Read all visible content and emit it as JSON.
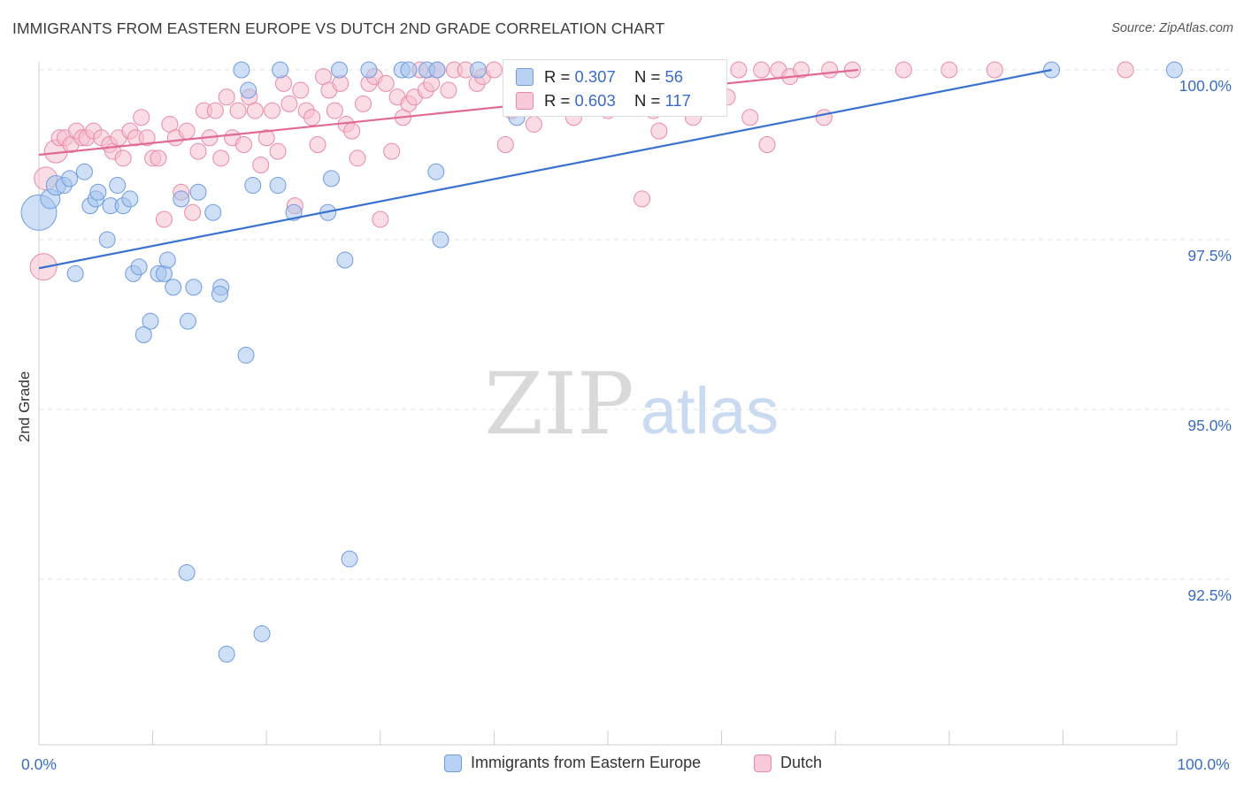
{
  "title": "IMMIGRANTS FROM EASTERN EUROPE VS DUTCH 2ND GRADE CORRELATION CHART",
  "source": "Source: ZipAtlas.com",
  "watermark": {
    "zip": "ZIP",
    "atlas": "atlas"
  },
  "legend": {
    "rows": [
      {
        "r_label": "R = ",
        "r_value": "0.307",
        "n_label": "N = ",
        "n_value": "56"
      },
      {
        "r_label": "R = ",
        "r_value": "0.603",
        "n_label": "N = ",
        "n_value": "117"
      }
    ]
  },
  "colors": {
    "blue_fill": "#a8c4ec",
    "blue_stroke": "#6f9be0",
    "blue_line": "#3a72d0",
    "pink_fill": "#f6bfd0",
    "pink_stroke": "#e88aa8",
    "pink_line": "#e06a93",
    "grid": "#e3e3e3",
    "tick_label": "#3a6cc6"
  },
  "chart_data": {
    "type": "scatter",
    "title": "IMMIGRANTS FROM EASTERN EUROPE VS DUTCH 2ND GRADE CORRELATION CHART",
    "xlabel": "",
    "ylabel": "2nd Grade",
    "xlim": [
      0,
      100
    ],
    "ylim": [
      90.0,
      100.4
    ],
    "x_tick_labels": [
      "0.0%",
      "100.0%"
    ],
    "y_ticks": [
      {
        "value": 100.0,
        "label": "100.0%"
      },
      {
        "value": 97.5,
        "label": "97.5%"
      },
      {
        "value": 95.0,
        "label": "95.0%"
      },
      {
        "value": 92.5,
        "label": "92.5%"
      }
    ],
    "grid": true,
    "legend_position": "bottom",
    "series": [
      {
        "name": "Immigrants from Eastern Europe",
        "color": "#a8c4ec",
        "trend": {
          "x": [
            0,
            89
          ],
          "y": [
            97.08,
            100.0
          ]
        },
        "points": [
          [
            0.0,
            97.9,
            20
          ],
          [
            1.0,
            98.1,
            11
          ],
          [
            1.5,
            98.3,
            11
          ],
          [
            2.2,
            98.3,
            9
          ],
          [
            2.7,
            98.4,
            9
          ],
          [
            4.0,
            98.5,
            9
          ],
          [
            4.5,
            98.0,
            9
          ],
          [
            5.0,
            98.1,
            9
          ],
          [
            5.2,
            98.2,
            9
          ],
          [
            6.3,
            98.0,
            9
          ],
          [
            6.9,
            98.3,
            9
          ],
          [
            7.4,
            98.0,
            9
          ],
          [
            8.0,
            98.1,
            9
          ],
          [
            3.2,
            97.0,
            9
          ],
          [
            6.0,
            97.5,
            9
          ],
          [
            8.3,
            97.0,
            9
          ],
          [
            8.8,
            97.1,
            9
          ],
          [
            10.5,
            97.0,
            9
          ],
          [
            11.0,
            97.0,
            9
          ],
          [
            11.3,
            97.2,
            9
          ],
          [
            11.8,
            96.8,
            9
          ],
          [
            13.6,
            96.8,
            9
          ],
          [
            16.0,
            96.8,
            9
          ],
          [
            15.9,
            96.7,
            9
          ],
          [
            9.8,
            96.3,
            9
          ],
          [
            13.1,
            96.3,
            9
          ],
          [
            9.2,
            96.1,
            9
          ],
          [
            18.2,
            95.8,
            9
          ],
          [
            14.0,
            98.2,
            9
          ],
          [
            12.5,
            98.1,
            9
          ],
          [
            15.3,
            97.9,
            9
          ],
          [
            18.8,
            98.3,
            9
          ],
          [
            21.0,
            98.3,
            9
          ],
          [
            22.4,
            97.9,
            9
          ],
          [
            25.4,
            97.9,
            9
          ],
          [
            25.7,
            98.4,
            9
          ],
          [
            26.9,
            97.2,
            9
          ],
          [
            35.3,
            97.5,
            9
          ],
          [
            34.9,
            98.5,
            9
          ],
          [
            18.4,
            99.7,
            9
          ],
          [
            17.8,
            100.0,
            9
          ],
          [
            21.2,
            100.0,
            9
          ],
          [
            26.4,
            100.0,
            9
          ],
          [
            29.0,
            100.0,
            9
          ],
          [
            31.9,
            100.0,
            9
          ],
          [
            32.5,
            100.0,
            9
          ],
          [
            34.1,
            100.0,
            9
          ],
          [
            35.0,
            100.0,
            9
          ],
          [
            38.6,
            100.0,
            9
          ],
          [
            42.0,
            99.3,
            9
          ],
          [
            89.0,
            100.0,
            9
          ],
          [
            99.8,
            100.0,
            9
          ],
          [
            13.0,
            92.6,
            9
          ],
          [
            27.3,
            92.8,
            9
          ],
          [
            19.6,
            91.7,
            9
          ],
          [
            16.5,
            91.4,
            9
          ]
        ]
      },
      {
        "name": "Dutch",
        "color": "#f6bfd0",
        "trend": {
          "x": [
            0,
            72
          ],
          "y": [
            98.75,
            100.0
          ]
        },
        "points": [
          [
            0.4,
            97.1,
            15
          ],
          [
            0.6,
            98.4,
            13
          ],
          [
            1.5,
            98.8,
            13
          ],
          [
            1.8,
            99.0,
            9
          ],
          [
            2.3,
            99.0,
            9
          ],
          [
            2.8,
            98.9,
            9
          ],
          [
            3.3,
            99.1,
            9
          ],
          [
            3.8,
            99.0,
            9
          ],
          [
            4.2,
            99.0,
            9
          ],
          [
            4.8,
            99.1,
            9
          ],
          [
            5.5,
            99.0,
            9
          ],
          [
            6.2,
            98.9,
            9
          ],
          [
            6.5,
            98.8,
            9
          ],
          [
            7.0,
            99.0,
            9
          ],
          [
            7.4,
            98.7,
            9
          ],
          [
            8.0,
            99.1,
            9
          ],
          [
            8.5,
            99.0,
            9
          ],
          [
            9.0,
            99.3,
            9
          ],
          [
            9.5,
            99.0,
            9
          ],
          [
            10.0,
            98.7,
            9
          ],
          [
            10.5,
            98.7,
            9
          ],
          [
            11.0,
            97.8,
            9
          ],
          [
            11.5,
            99.2,
            9
          ],
          [
            12.0,
            99.0,
            9
          ],
          [
            12.5,
            98.2,
            9
          ],
          [
            13.0,
            99.1,
            9
          ],
          [
            13.5,
            97.9,
            9
          ],
          [
            14.0,
            98.8,
            9
          ],
          [
            14.5,
            99.4,
            9
          ],
          [
            15.0,
            99.0,
            9
          ],
          [
            15.5,
            99.4,
            9
          ],
          [
            16.0,
            98.7,
            9
          ],
          [
            16.5,
            99.6,
            9
          ],
          [
            17.0,
            99.0,
            9
          ],
          [
            17.5,
            99.4,
            9
          ],
          [
            18.0,
            98.9,
            9
          ],
          [
            18.5,
            99.6,
            9
          ],
          [
            19.0,
            99.4,
            9
          ],
          [
            19.5,
            98.6,
            9
          ],
          [
            20.0,
            99.0,
            9
          ],
          [
            20.5,
            99.4,
            9
          ],
          [
            21.0,
            98.8,
            9
          ],
          [
            21.5,
            99.8,
            9
          ],
          [
            22.0,
            99.5,
            9
          ],
          [
            22.5,
            98.0,
            9
          ],
          [
            23.0,
            99.7,
            9
          ],
          [
            23.5,
            99.4,
            9
          ],
          [
            24.0,
            99.3,
            9
          ],
          [
            24.5,
            98.9,
            9
          ],
          [
            25.0,
            99.9,
            9
          ],
          [
            25.5,
            99.7,
            9
          ],
          [
            26.0,
            99.4,
            9
          ],
          [
            26.5,
            99.8,
            9
          ],
          [
            27.0,
            99.2,
            9
          ],
          [
            27.5,
            99.1,
            9
          ],
          [
            28.0,
            98.7,
            9
          ],
          [
            28.5,
            99.5,
            9
          ],
          [
            29.0,
            99.8,
            9
          ],
          [
            29.5,
            99.9,
            9
          ],
          [
            30.0,
            97.8,
            9
          ],
          [
            30.5,
            99.8,
            9
          ],
          [
            31.0,
            98.8,
            9
          ],
          [
            31.5,
            99.6,
            9
          ],
          [
            32.0,
            99.3,
            9
          ],
          [
            32.5,
            99.5,
            9
          ],
          [
            33.0,
            99.6,
            9
          ],
          [
            33.5,
            100.0,
            9
          ],
          [
            34.0,
            99.7,
            9
          ],
          [
            34.5,
            99.8,
            9
          ],
          [
            35.0,
            100.0,
            9
          ],
          [
            36.0,
            99.7,
            9
          ],
          [
            36.5,
            100.0,
            9
          ],
          [
            37.5,
            100.0,
            9
          ],
          [
            38.5,
            99.8,
            9
          ],
          [
            39.0,
            99.9,
            9
          ],
          [
            40.0,
            100.0,
            9
          ],
          [
            41.0,
            98.9,
            9
          ],
          [
            41.5,
            99.4,
            9
          ],
          [
            42.5,
            100.0,
            9
          ],
          [
            43.5,
            99.2,
            9
          ],
          [
            44.0,
            99.9,
            9
          ],
          [
            45.0,
            99.6,
            9
          ],
          [
            45.5,
            99.6,
            9
          ],
          [
            46.0,
            100.0,
            9
          ],
          [
            47.0,
            99.3,
            9
          ],
          [
            48.0,
            100.0,
            9
          ],
          [
            48.5,
            99.5,
            9
          ],
          [
            49.5,
            99.7,
            9
          ],
          [
            50.0,
            99.4,
            9
          ],
          [
            50.5,
            99.9,
            9
          ],
          [
            51.0,
            99.7,
            9
          ],
          [
            51.5,
            100.0,
            9
          ],
          [
            53.0,
            98.1,
            9
          ],
          [
            54.0,
            99.4,
            9
          ],
          [
            54.5,
            99.1,
            9
          ],
          [
            55.0,
            99.7,
            9
          ],
          [
            56.0,
            99.8,
            9
          ],
          [
            57.0,
            100.0,
            9
          ],
          [
            57.5,
            99.3,
            9
          ],
          [
            58.0,
            99.9,
            9
          ],
          [
            58.5,
            99.5,
            9
          ],
          [
            59.5,
            100.0,
            9
          ],
          [
            60.5,
            99.6,
            9
          ],
          [
            61.5,
            100.0,
            9
          ],
          [
            62.5,
            99.3,
            9
          ],
          [
            63.5,
            100.0,
            9
          ],
          [
            64.0,
            98.9,
            9
          ],
          [
            65.0,
            100.0,
            9
          ],
          [
            66.0,
            99.9,
            9
          ],
          [
            67.0,
            100.0,
            9
          ],
          [
            69.0,
            99.3,
            9
          ],
          [
            69.5,
            100.0,
            9
          ],
          [
            71.5,
            100.0,
            9
          ],
          [
            76.0,
            100.0,
            9
          ],
          [
            80.0,
            100.0,
            9
          ],
          [
            84.0,
            100.0,
            9
          ],
          [
            95.5,
            100.0,
            9
          ]
        ]
      }
    ]
  }
}
